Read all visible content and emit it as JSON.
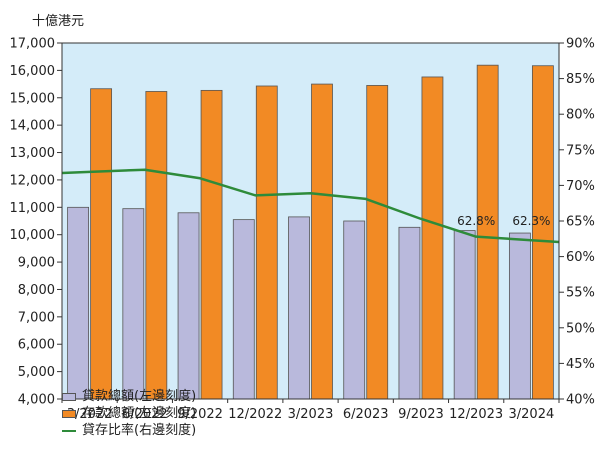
{
  "unit_label": "十億港元",
  "colors": {
    "plot_bg": "#d4ecf9",
    "loans": "#b9b9dc",
    "deposits": "#f28a24",
    "ratio_line": "#2e8b3a"
  },
  "chart_data": {
    "type": "bar",
    "categories": [
      "3/2022",
      "6/2022",
      "9/2022",
      "12/2022",
      "3/2023",
      "6/2023",
      "9/2023",
      "12/2023",
      "3/2024"
    ],
    "series": [
      {
        "name": "貸款總額(左邊刻度)",
        "axis": "left",
        "type": "bar",
        "values": [
          11000,
          10950,
          10800,
          10550,
          10650,
          10500,
          10270,
          10150,
          10060
        ]
      },
      {
        "name": "存款總額(左邊刻度)",
        "axis": "left",
        "type": "bar",
        "values": [
          15330,
          15230,
          15270,
          15430,
          15500,
          15450,
          15760,
          16190,
          16170
        ]
      },
      {
        "name": "貸存比率(右邊刻度)",
        "axis": "right",
        "type": "line",
        "values": [
          71.9,
          72.2,
          71.0,
          68.6,
          68.9,
          68.1,
          65.3,
          62.8,
          62.3
        ]
      }
    ],
    "annotations": [
      "62.8%",
      "62.3%"
    ],
    "left_axis": {
      "min": 4000,
      "max": 17000,
      "step": 1000,
      "ticks": [
        "4,000",
        "5,000",
        "6,000",
        "7,000",
        "8,000",
        "9,000",
        "10,000",
        "11,000",
        "12,000",
        "13,000",
        "14,000",
        "15,000",
        "16,000",
        "17,000"
      ]
    },
    "right_axis": {
      "min": 40,
      "max": 90,
      "step": 5,
      "ticks": [
        "40%",
        "45%",
        "50%",
        "55%",
        "60%",
        "65%",
        "70%",
        "75%",
        "80%",
        "85%",
        "90%"
      ]
    },
    "grid": false,
    "legend_position": "bottom-left"
  }
}
